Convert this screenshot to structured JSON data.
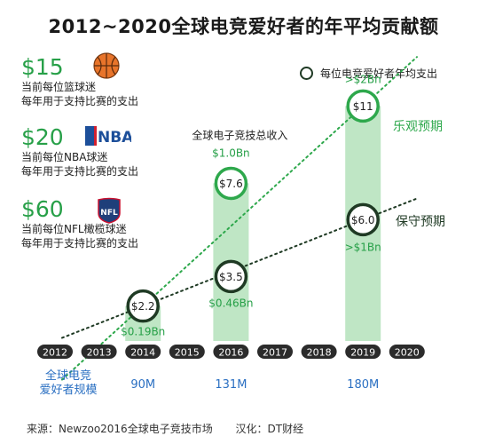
{
  "title": "2012~2020全球电竞爱好者的年平均贡献额",
  "side_items": [
    {
      "amount": "$15",
      "line1": "当前每位篮球迷",
      "line2": "每年用于支持比赛的支出",
      "icon": "basketball-icon"
    },
    {
      "amount": "$20",
      "line1": "当前每位NBA球迷",
      "line2": "每年用于支持比赛的支出",
      "icon": "nba-logo",
      "logo_text": "NBA"
    },
    {
      "amount": "$60",
      "line1": "当前每位NFL橄榄球迷",
      "line2": "每年用于支持比赛的支出",
      "icon": "nfl-logo",
      "logo_text": "NFL"
    }
  ],
  "legend_label": "每位电竞爱好者年均支出",
  "source": "来源：Newzoo2016全球电子竞技市场",
  "translator": "汉化：DT财经",
  "chart_data": {
    "type": "bar",
    "x": [
      "2012",
      "2013",
      "2014",
      "2015",
      "2016",
      "2017",
      "2018",
      "2019",
      "2020"
    ],
    "bars": [
      {
        "year": "2014",
        "avg_spend": 2.2,
        "avg_spend_label": "$2.2",
        "revenue_label": "$0.19Bn"
      },
      {
        "year": "2016",
        "avg_spend": 7.6,
        "avg_spend_label": "$7.6",
        "revenue_label": "$1.0Bn"
      },
      {
        "year": "2019",
        "avg_spend": 11,
        "avg_spend_label": "$11",
        "revenue_label": ">$2Bn"
      }
    ],
    "conservative_points": [
      {
        "year": "2016",
        "avg_spend": 3.5,
        "avg_spend_label": "$3.5",
        "revenue_label": "$0.46Bn"
      },
      {
        "year": "2019",
        "avg_spend": 6.0,
        "avg_spend_label": "$6.0",
        "revenue_label": ">$1Bn"
      }
    ],
    "optimistic_label": "乐观预期",
    "conservative_label": "保守预期",
    "revenue_title": "全球电子竞技总收入",
    "audience_title_line1": "全球电竞",
    "audience_title_line2": "爱好者规模",
    "audience": [
      {
        "year": "2014",
        "value": "90M"
      },
      {
        "year": "2016",
        "value": "131M"
      },
      {
        "year": "2019",
        "value": "180M"
      }
    ],
    "colors": {
      "bar": "#bfe6c5",
      "optimistic": "#2ea84c",
      "conservative": "#1f3a24",
      "axis_pill": "#2b2b2b",
      "accent_text": "#27a048",
      "blue_text": "#2a6fc2"
    }
  }
}
